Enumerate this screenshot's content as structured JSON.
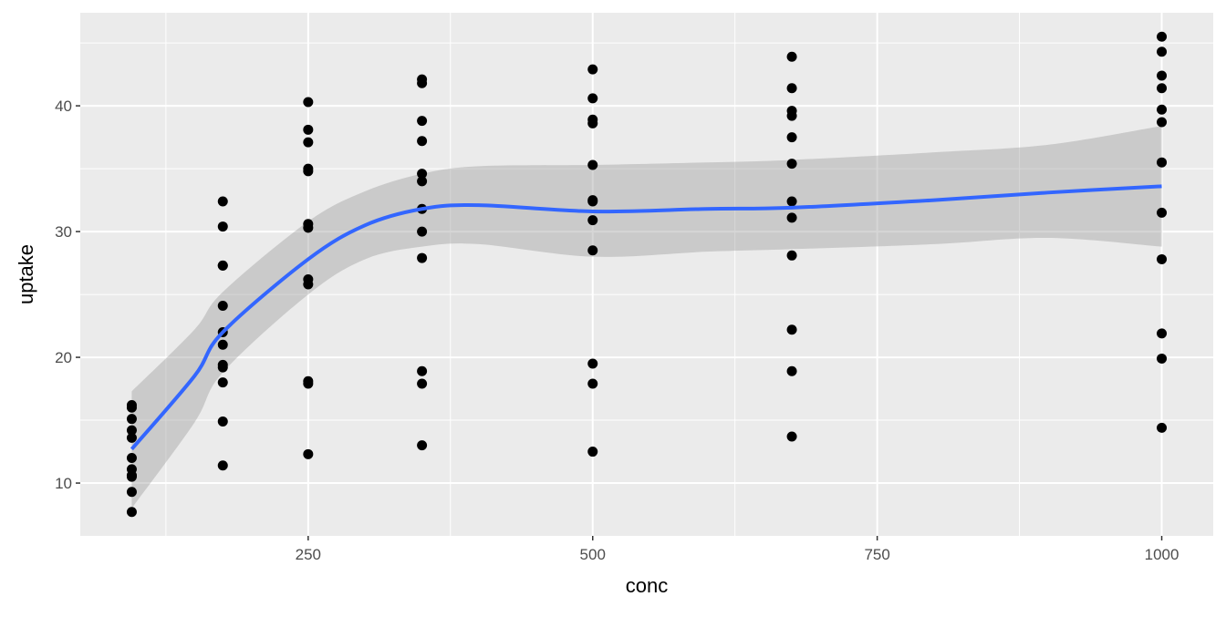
{
  "chart_data": {
    "type": "scatter",
    "x_label": "conc",
    "y_label": "uptake",
    "x": [
      95,
      175,
      250,
      350,
      500,
      675,
      1000,
      95,
      175,
      250,
      350,
      500,
      675,
      1000,
      95,
      175,
      250,
      350,
      500,
      675,
      1000,
      95,
      175,
      250,
      350,
      500,
      675,
      1000,
      95,
      175,
      250,
      350,
      500,
      675,
      1000,
      95,
      175,
      250,
      350,
      500,
      675,
      1000,
      95,
      175,
      250,
      350,
      500,
      675,
      1000,
      95,
      175,
      250,
      350,
      500,
      675,
      1000,
      95,
      175,
      250,
      350,
      500,
      675,
      1000,
      95,
      175,
      250,
      350,
      500,
      675,
      1000,
      95,
      175,
      250,
      350,
      500,
      675,
      1000,
      95,
      175,
      250,
      350,
      500,
      675,
      1000
    ],
    "y": [
      16.0,
      30.4,
      34.8,
      37.2,
      35.3,
      39.2,
      39.7,
      13.6,
      27.3,
      37.1,
      41.8,
      40.6,
      41.4,
      44.3,
      16.2,
      32.4,
      40.3,
      42.1,
      42.9,
      43.9,
      45.5,
      14.2,
      24.1,
      30.3,
      34.6,
      32.5,
      35.4,
      38.7,
      15.1,
      21.0,
      38.1,
      34.0,
      38.9,
      39.6,
      41.4,
      9.3,
      27.3,
      35.0,
      38.8,
      38.6,
      37.5,
      42.4,
      11.1,
      19.4,
      25.8,
      27.9,
      28.5,
      28.1,
      27.8,
      12.0,
      22.0,
      30.6,
      31.8,
      32.4,
      31.1,
      31.5,
      10.6,
      19.2,
      26.2,
      30.0,
      30.9,
      32.4,
      35.5,
      7.7,
      11.4,
      12.3,
      13.0,
      12.5,
      13.7,
      14.4,
      10.6,
      18.0,
      17.9,
      17.9,
      17.9,
      18.9,
      19.9,
      10.5,
      14.9,
      18.1,
      18.9,
      19.5,
      22.2,
      21.9
    ],
    "color": "#000000",
    "smooth": {
      "color": "#3366FF",
      "band_color": "#999999",
      "x": [
        95,
        150,
        175,
        250,
        300,
        350,
        400,
        500,
        600,
        675,
        800,
        900,
        1000
      ],
      "y": [
        12.7,
        18.5,
        22.0,
        27.8,
        30.5,
        31.8,
        32.1,
        31.6,
        31.8,
        31.9,
        32.5,
        33.1,
        33.6
      ],
      "lower": [
        8.0,
        14.8,
        18.8,
        25.0,
        27.8,
        28.8,
        29.0,
        28.0,
        28.4,
        28.6,
        29.0,
        29.5,
        28.8
      ],
      "upper": [
        17.3,
        22.2,
        25.2,
        30.8,
        33.2,
        34.6,
        35.2,
        35.3,
        35.5,
        35.7,
        36.3,
        36.9,
        38.4
      ]
    },
    "xlim": [
      49.75,
      1045.25
    ],
    "ylim": [
      5.8,
      47.4
    ],
    "xticks": [
      250,
      500,
      750,
      1000
    ],
    "yticks": [
      10,
      20,
      30,
      40
    ],
    "x_minor_ticks": [
      125,
      375,
      625,
      875
    ],
    "y_minor_ticks": [
      15,
      25,
      35,
      45
    ],
    "grid": true
  }
}
